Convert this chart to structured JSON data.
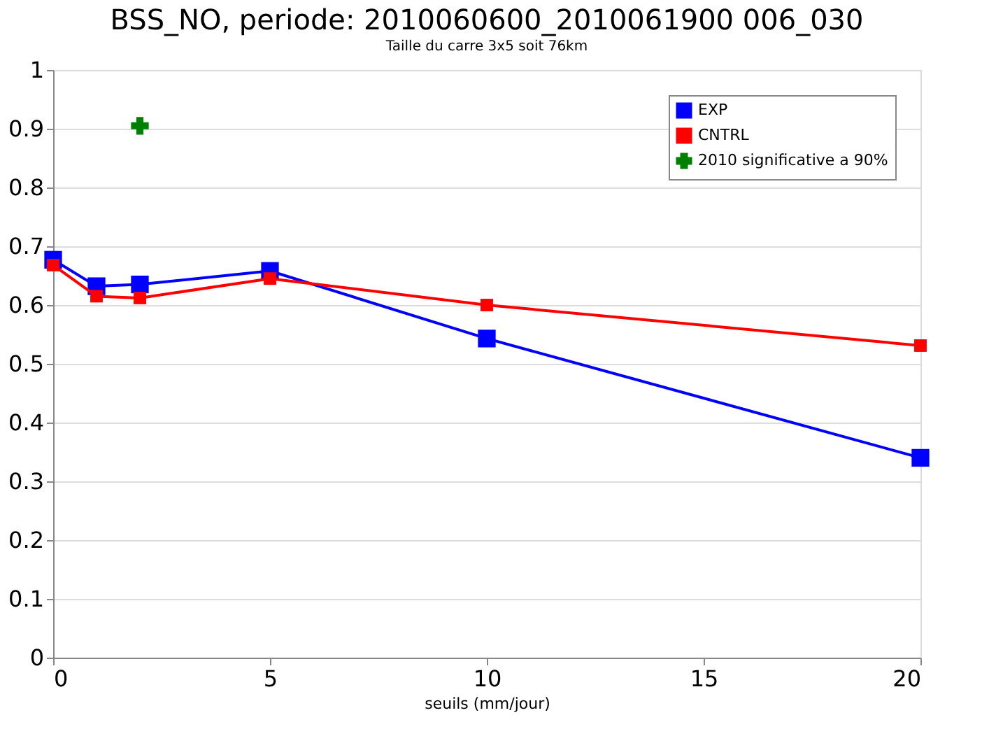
{
  "chart_data": {
    "type": "line",
    "title": "BSS_NO, periode: 2010060600_2010061900 006_030",
    "subtitle": "Taille du carre 3x5 soit 76km",
    "xlabel": "seuils (mm/jour)",
    "x": [
      0,
      1,
      2,
      5,
      10,
      20
    ],
    "series": [
      {
        "name": "EXP",
        "color": "#0000ff",
        "marker": "square",
        "values": [
          0.677,
          0.632,
          0.635,
          0.658,
          0.543,
          0.34
        ]
      },
      {
        "name": "CNTRL",
        "color": "#ff0000",
        "marker": "square",
        "values": [
          0.668,
          0.615,
          0.612,
          0.645,
          0.6,
          0.531
        ]
      },
      {
        "name": "2010 significative a 90%",
        "type": "scatter",
        "color": "#008000",
        "marker": "cross",
        "x": [
          2
        ],
        "values": [
          0.905
        ]
      }
    ],
    "xlim": [
      0,
      20
    ],
    "xticks": [
      0,
      5,
      10,
      15,
      20
    ],
    "ylim": [
      0,
      1
    ],
    "yticks": [
      0,
      0.1,
      0.2,
      0.3,
      0.4,
      0.5,
      0.6,
      0.7,
      0.8,
      0.9,
      1
    ],
    "grid": "y",
    "legend": "top right"
  }
}
